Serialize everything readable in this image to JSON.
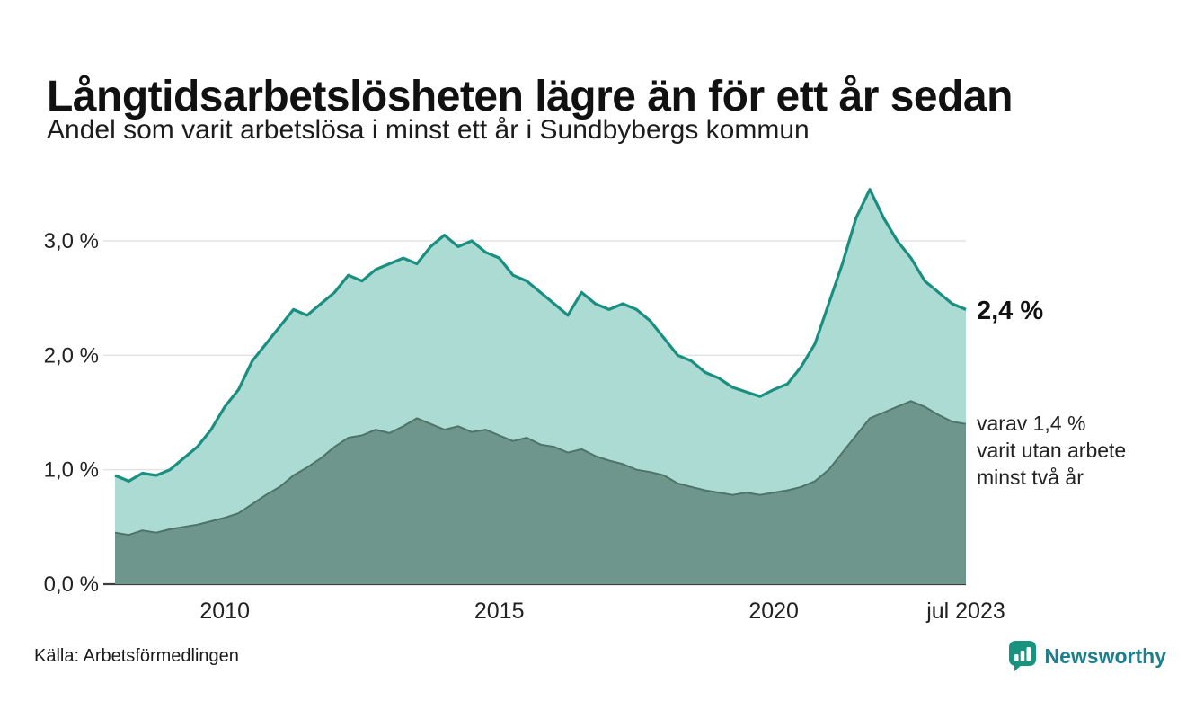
{
  "header": {
    "title": "Långtidsarbetslösheten lägre än för ett år sedan",
    "subtitle": "Andel som varit arbetslösa i minst ett år i Sundbybergs kommun"
  },
  "annotations": {
    "latest_value": "2,4 %",
    "secondary_label": "varav 1,4 %\nvarit utan arbete\nminst två år"
  },
  "footer": {
    "source": "Källa: Arbetsförmedlingen",
    "brand": "Newsworthy"
  },
  "colors": {
    "line_primary": "#1a8f80",
    "fill_primary": "#abdbd2",
    "line_secondary": "#4e7369",
    "fill_secondary": "#6e968c",
    "grid": "#e3e3e3",
    "axis": "#3d3d3d",
    "text": "#222222",
    "brand_icon": "#19937f",
    "brand_word": "#1d7e8c"
  },
  "chart_data": {
    "type": "area",
    "title": "Långtidsarbetslösheten lägre än för ett år sedan",
    "subtitle": "Andel som varit arbetslösa i minst ett år i Sundbybergs kommun",
    "unit": "%",
    "grid": true,
    "legend": "none",
    "x_axis": {
      "range": [
        2008.0,
        2023.5
      ],
      "ticks": [
        {
          "label": "2010",
          "x": 2010
        },
        {
          "label": "2015",
          "x": 2015
        },
        {
          "label": "2020",
          "x": 2020
        },
        {
          "label": "jul 2023",
          "x": 2023.5
        }
      ]
    },
    "y_axis": {
      "range": [
        0,
        3.6
      ],
      "ticks": [
        {
          "label": "3,0 %",
          "value": 3.0
        },
        {
          "label": "2,0 %",
          "value": 2.0
        },
        {
          "label": "1,0 %",
          "value": 1.0
        },
        {
          "label": "0,0 %",
          "value": 0.0
        }
      ]
    },
    "x": [
      2008.0,
      2008.25,
      2008.5,
      2008.75,
      2009.0,
      2009.25,
      2009.5,
      2009.75,
      2010.0,
      2010.25,
      2010.5,
      2010.75,
      2011.0,
      2011.25,
      2011.5,
      2011.75,
      2012.0,
      2012.25,
      2012.5,
      2012.75,
      2013.0,
      2013.25,
      2013.5,
      2013.75,
      2014.0,
      2014.25,
      2014.5,
      2014.75,
      2015.0,
      2015.25,
      2015.5,
      2015.75,
      2016.0,
      2016.25,
      2016.5,
      2016.75,
      2017.0,
      2017.25,
      2017.5,
      2017.75,
      2018.0,
      2018.25,
      2018.5,
      2018.75,
      2019.0,
      2019.25,
      2019.5,
      2019.75,
      2020.0,
      2020.25,
      2020.5,
      2020.75,
      2021.0,
      2021.25,
      2021.5,
      2021.75,
      2022.0,
      2022.25,
      2022.5,
      2022.75,
      2023.0,
      2023.25,
      2023.5
    ],
    "series": [
      {
        "name": "Andel arbetslösa minst ett år",
        "latest_label": "2,4 %",
        "color": "#1a8f80",
        "fill": "#abdbd2",
        "values": [
          0.95,
          0.9,
          0.97,
          0.95,
          1.0,
          1.1,
          1.2,
          1.35,
          1.55,
          1.7,
          1.95,
          2.1,
          2.25,
          2.4,
          2.35,
          2.45,
          2.55,
          2.7,
          2.65,
          2.75,
          2.8,
          2.85,
          2.8,
          2.95,
          3.05,
          2.95,
          3.0,
          2.9,
          2.85,
          2.7,
          2.65,
          2.55,
          2.45,
          2.35,
          2.55,
          2.45,
          2.4,
          2.45,
          2.4,
          2.3,
          2.15,
          2.0,
          1.95,
          1.85,
          1.8,
          1.72,
          1.68,
          1.64,
          1.7,
          1.75,
          1.9,
          2.1,
          2.45,
          2.8,
          3.2,
          3.45,
          3.2,
          3.0,
          2.85,
          2.65,
          2.55,
          2.45,
          2.4
        ]
      },
      {
        "name": "varav utan arbete minst två år",
        "latest_label": "varav 1,4 % varit utan arbete minst två år",
        "color": "#4e7369",
        "fill": "#6e968c",
        "values": [
          0.45,
          0.43,
          0.47,
          0.45,
          0.48,
          0.5,
          0.52,
          0.55,
          0.58,
          0.62,
          0.7,
          0.78,
          0.85,
          0.95,
          1.02,
          1.1,
          1.2,
          1.28,
          1.3,
          1.35,
          1.32,
          1.38,
          1.45,
          1.4,
          1.35,
          1.38,
          1.33,
          1.35,
          1.3,
          1.25,
          1.28,
          1.22,
          1.2,
          1.15,
          1.18,
          1.12,
          1.08,
          1.05,
          1.0,
          0.98,
          0.95,
          0.88,
          0.85,
          0.82,
          0.8,
          0.78,
          0.8,
          0.78,
          0.8,
          0.82,
          0.85,
          0.9,
          1.0,
          1.15,
          1.3,
          1.45,
          1.5,
          1.55,
          1.6,
          1.55,
          1.48,
          1.42,
          1.4
        ]
      }
    ]
  }
}
